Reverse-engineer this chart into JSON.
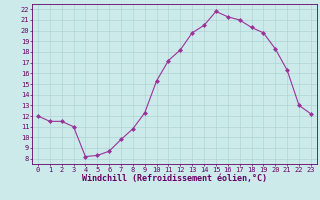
{
  "x": [
    0,
    1,
    2,
    3,
    4,
    5,
    6,
    7,
    8,
    9,
    10,
    11,
    12,
    13,
    14,
    15,
    16,
    17,
    18,
    19,
    20,
    21,
    22,
    23
  ],
  "y": [
    12.0,
    11.5,
    11.5,
    11.0,
    8.2,
    8.3,
    8.7,
    9.8,
    10.8,
    12.3,
    15.3,
    17.2,
    18.2,
    19.8,
    20.5,
    21.8,
    21.3,
    21.0,
    20.3,
    19.8,
    18.3,
    16.3,
    13.0,
    12.2
  ],
  "xlim": [
    -0.5,
    23.5
  ],
  "ylim": [
    7.5,
    22.5
  ],
  "yticks": [
    8,
    9,
    10,
    11,
    12,
    13,
    14,
    15,
    16,
    17,
    18,
    19,
    20,
    21,
    22
  ],
  "xticks": [
    0,
    1,
    2,
    3,
    4,
    5,
    6,
    7,
    8,
    9,
    10,
    11,
    12,
    13,
    14,
    15,
    16,
    17,
    18,
    19,
    20,
    21,
    22,
    23
  ],
  "xlabel": "Windchill (Refroidissement éolien,°C)",
  "line_color": "#993399",
  "marker": "D",
  "marker_size": 2.0,
  "bg_color": "#cceaea",
  "grid_color": "#aacece",
  "axis_color": "#660066",
  "tick_color": "#660066",
  "label_color": "#660066",
  "tick_fontsize": 5.0,
  "xlabel_fontsize": 6.0,
  "linewidth": 0.8
}
